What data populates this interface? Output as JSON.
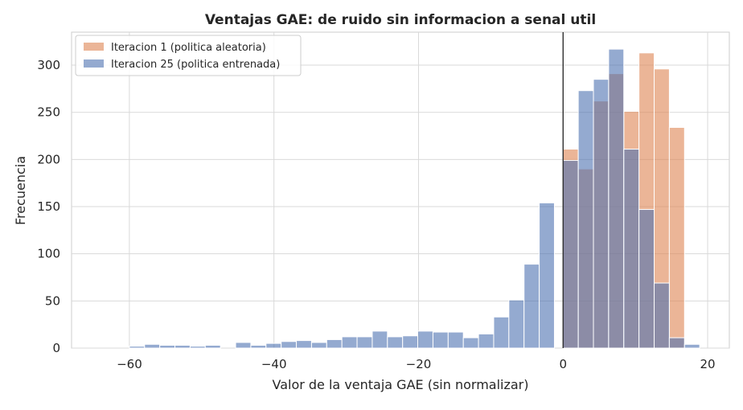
{
  "chart_data": {
    "type": "bar",
    "title": "Ventajas GAE: de ruido sin informacion a senal util",
    "xlabel": "Valor de la ventaja GAE (sin normalizar)",
    "ylabel": "Frecuencia",
    "xlim": [
      -68,
      23
    ],
    "ylim": [
      0,
      335
    ],
    "xticks": [
      -60,
      -40,
      -20,
      0,
      20
    ],
    "xtick_labels": [
      "−60",
      "−40",
      "−20",
      "0",
      "20"
    ],
    "yticks": [
      0,
      50,
      100,
      150,
      200,
      250,
      300
    ],
    "grid": true,
    "legend_position": "top-left",
    "reference_line_x": 0,
    "bin_width": 2.1,
    "series": [
      {
        "name": "Iteracion 1 (politica aleatoria)",
        "color": "#dd8452",
        "bins": [
          {
            "x": [
              0.0,
              2.1
            ],
            "count": 211
          },
          {
            "x": [
              2.1,
              4.2
            ],
            "count": 190
          },
          {
            "x": [
              4.2,
              6.3
            ],
            "count": 262
          },
          {
            "x": [
              6.3,
              8.4
            ],
            "count": 291
          },
          {
            "x": [
              8.4,
              10.5
            ],
            "count": 251
          },
          {
            "x": [
              10.5,
              12.6
            ],
            "count": 313
          },
          {
            "x": [
              12.6,
              14.7
            ],
            "count": 296
          },
          {
            "x": [
              14.7,
              16.8
            ],
            "count": 234
          }
        ]
      },
      {
        "name": "Iteracion 25 (politica entrenada)",
        "color": "#4c72b0",
        "bins": [
          {
            "x": [
              -60.0,
              -57.9
            ],
            "count": 2
          },
          {
            "x": [
              -57.9,
              -55.8
            ],
            "count": 4
          },
          {
            "x": [
              -55.8,
              -53.7
            ],
            "count": 3
          },
          {
            "x": [
              -53.7,
              -51.6
            ],
            "count": 3
          },
          {
            "x": [
              -51.6,
              -49.5
            ],
            "count": 2
          },
          {
            "x": [
              -49.5,
              -47.4
            ],
            "count": 3
          },
          {
            "x": [
              -47.4,
              -45.3
            ],
            "count": 0
          },
          {
            "x": [
              -45.3,
              -43.2
            ],
            "count": 6
          },
          {
            "x": [
              -43.2,
              -41.1
            ],
            "count": 3
          },
          {
            "x": [
              -41.1,
              -39.0
            ],
            "count": 5
          },
          {
            "x": [
              -39.0,
              -36.9
            ],
            "count": 7
          },
          {
            "x": [
              -36.9,
              -34.8
            ],
            "count": 8
          },
          {
            "x": [
              -34.8,
              -32.7
            ],
            "count": 6
          },
          {
            "x": [
              -32.7,
              -30.6
            ],
            "count": 9
          },
          {
            "x": [
              -30.6,
              -28.5
            ],
            "count": 12
          },
          {
            "x": [
              -28.5,
              -26.4
            ],
            "count": 12
          },
          {
            "x": [
              -26.4,
              -24.3
            ],
            "count": 18
          },
          {
            "x": [
              -24.3,
              -22.2
            ],
            "count": 12
          },
          {
            "x": [
              -22.2,
              -20.1
            ],
            "count": 13
          },
          {
            "x": [
              -20.1,
              -18.0
            ],
            "count": 18
          },
          {
            "x": [
              -18.0,
              -15.9
            ],
            "count": 17
          },
          {
            "x": [
              -15.9,
              -13.8
            ],
            "count": 17
          },
          {
            "x": [
              -13.8,
              -11.7
            ],
            "count": 11
          },
          {
            "x": [
              -11.7,
              -9.6
            ],
            "count": 15
          },
          {
            "x": [
              -9.6,
              -7.5
            ],
            "count": 33
          },
          {
            "x": [
              -7.5,
              -5.4
            ],
            "count": 51
          },
          {
            "x": [
              -5.4,
              -3.3
            ],
            "count": 89
          },
          {
            "x": [
              -3.3,
              -1.2
            ],
            "count": 154
          },
          {
            "x": [
              0.0,
              2.1
            ],
            "count": 199
          },
          {
            "x": [
              2.1,
              4.2
            ],
            "count": 273
          },
          {
            "x": [
              4.2,
              6.3
            ],
            "count": 285
          },
          {
            "x": [
              6.3,
              8.4
            ],
            "count": 317
          },
          {
            "x": [
              8.4,
              10.5
            ],
            "count": 211
          },
          {
            "x": [
              10.5,
              12.6
            ],
            "count": 147
          },
          {
            "x": [
              12.6,
              14.7
            ],
            "count": 69
          },
          {
            "x": [
              14.7,
              16.8
            ],
            "count": 11
          },
          {
            "x": [
              16.8,
              18.9
            ],
            "count": 4
          }
        ]
      }
    ]
  }
}
